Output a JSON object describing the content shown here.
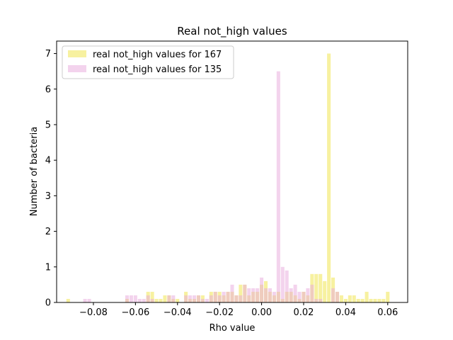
{
  "chart_data": {
    "type": "bar",
    "title": "Real not_high values",
    "xlabel": "Rho value",
    "ylabel": "Number of bacteria",
    "xlim": [
      -0.0975,
      0.0695
    ],
    "ylim": [
      0,
      7.35
    ],
    "x_ticks": [
      -0.08,
      -0.06,
      -0.04,
      -0.02,
      0.0,
      0.02,
      0.04,
      0.06
    ],
    "x_tick_labels": [
      "−0.08",
      "−0.06",
      "−0.04",
      "−0.02",
      "0.00",
      "0.02",
      "0.04",
      "0.06"
    ],
    "y_ticks": [
      0,
      1,
      2,
      3,
      4,
      5,
      6,
      7
    ],
    "y_tick_labels": [
      "0",
      "1",
      "2",
      "3",
      "4",
      "5",
      "6",
      "7"
    ],
    "bin_width": 0.002,
    "legend_position": "top-left",
    "grid": false,
    "series": [
      {
        "name": "real not_high values for 167",
        "color": "#f0e442",
        "opacity": 0.5,
        "x": [
          -0.092,
          -0.064,
          -0.054,
          -0.052,
          -0.05,
          -0.048,
          -0.046,
          -0.044,
          -0.042,
          -0.04,
          -0.036,
          -0.034,
          -0.032,
          -0.03,
          -0.028,
          -0.024,
          -0.022,
          -0.02,
          -0.018,
          -0.016,
          -0.014,
          -0.012,
          -0.01,
          -0.008,
          -0.006,
          -0.004,
          -0.002,
          0.0,
          0.002,
          0.004,
          0.006,
          0.008,
          0.01,
          0.012,
          0.014,
          0.016,
          0.018,
          0.02,
          0.022,
          0.024,
          0.026,
          0.028,
          0.03,
          0.032,
          0.034,
          0.036,
          0.038,
          0.04,
          0.042,
          0.044,
          0.046,
          0.048,
          0.05,
          0.052,
          0.054,
          0.056,
          0.058,
          0.06
        ],
        "values": [
          0.1,
          0.1,
          0.3,
          0.3,
          0.1,
          0.1,
          0.2,
          0.2,
          0.1,
          0.1,
          0.3,
          0.1,
          0.1,
          0.2,
          0.2,
          0.3,
          0.3,
          0.3,
          0.2,
          0.3,
          0.3,
          0.2,
          0.5,
          0.5,
          0.2,
          0.3,
          0.3,
          0.5,
          0.6,
          0.3,
          0.2,
          0.3,
          0.1,
          0.3,
          0.3,
          0.2,
          0.1,
          0.3,
          0.2,
          0.8,
          0.8,
          0.8,
          0.6,
          7.0,
          0.7,
          0.3,
          0.2,
          0.1,
          0.2,
          0.2,
          0.1,
          0.1,
          0.3,
          0.1,
          0.1,
          0.1,
          0.1,
          0.3
        ]
      },
      {
        "name": "real not_high values for 135",
        "color": "#e8a8dc",
        "opacity": 0.5,
        "x": [
          -0.084,
          -0.082,
          -0.064,
          -0.062,
          -0.06,
          -0.058,
          -0.056,
          -0.054,
          -0.052,
          -0.044,
          -0.042,
          -0.036,
          -0.034,
          -0.032,
          -0.03,
          -0.028,
          -0.026,
          -0.024,
          -0.022,
          -0.02,
          -0.018,
          -0.016,
          -0.014,
          -0.012,
          -0.01,
          -0.008,
          -0.006,
          -0.004,
          -0.002,
          0.0,
          0.002,
          0.004,
          0.006,
          0.008,
          0.01,
          0.012,
          0.014,
          0.016,
          0.018,
          0.02,
          0.022,
          0.024,
          0.026,
          0.028,
          0.034,
          0.036
        ],
        "values": [
          0.1,
          0.1,
          0.2,
          0.2,
          0.2,
          0.1,
          0.1,
          0.2,
          0.1,
          0.2,
          0.2,
          0.2,
          0.2,
          0.2,
          0.2,
          0.1,
          0.1,
          0.2,
          0.3,
          0.2,
          0.3,
          0.3,
          0.5,
          0.2,
          0.2,
          0.5,
          0.4,
          0.4,
          0.4,
          0.7,
          0.4,
          0.4,
          0.3,
          6.5,
          1.0,
          0.9,
          0.4,
          0.5,
          0.3,
          0.3,
          0.4,
          0.5,
          0.1,
          0.1,
          0.4,
          0.3
        ]
      }
    ]
  }
}
